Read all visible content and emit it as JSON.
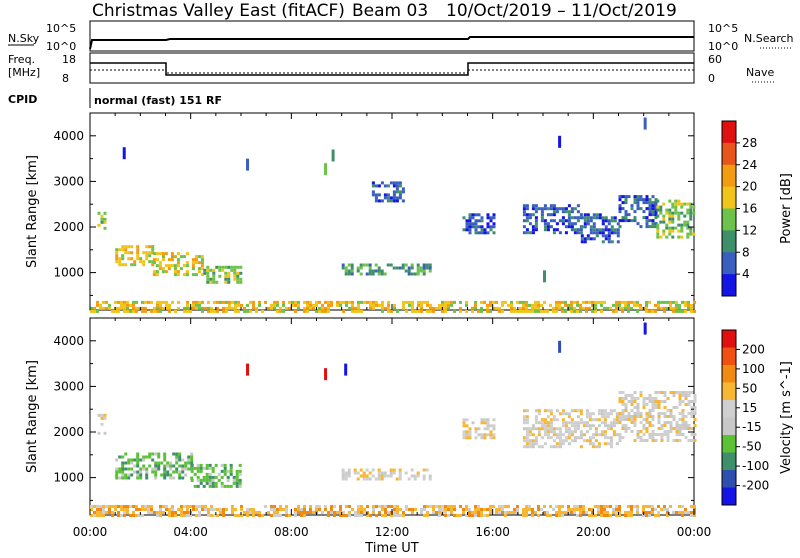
{
  "header": {
    "station": "Christmas Valley East (fitACF)",
    "beam": "Beam 03",
    "date_range": "10/Oct/2019 – 11/Oct/2019"
  },
  "top_panels": {
    "nsky_label": "N.Sky",
    "nsearch_label": "N.Search",
    "nsky_ticks": [
      "10^5",
      "10^0"
    ],
    "nsearch_ticks": [
      "10^5",
      "10^0"
    ],
    "freq_label_1": "Freq.",
    "freq_label_2": "[MHz]",
    "freq_ticks": [
      "18",
      "8"
    ],
    "nave_label": "Nave",
    "nave_ticks": [
      "60",
      "0"
    ],
    "cpid_label": "CPID",
    "cpid_text": "normal (fast) 151 RF"
  },
  "colors": {
    "power_scale": [
      "#1414e6",
      "#3a5fc0",
      "#3f8f6a",
      "#6cc24a",
      "#f0c419",
      "#f39c12",
      "#e8551a",
      "#e01010"
    ],
    "velocity_scale": [
      "#e01010",
      "#f05010",
      "#f08a10",
      "#f7b733",
      "#cfcfcf",
      "#c8c8c8",
      "#5bc236",
      "#3f8f6a",
      "#2f4fb0",
      "#1414e6"
    ],
    "ground": "#000000"
  },
  "chart_data": [
    {
      "type": "heatmap",
      "name": "power",
      "ylabel": "Slant Range [km]",
      "xlabel": "",
      "ylim": [
        180,
        4500
      ],
      "xlim": [
        0,
        24
      ],
      "x_ticks": [
        "00:00",
        "04:00",
        "08:00",
        "12:00",
        "16:00",
        "20:00",
        "00:00"
      ],
      "y_ticks": [
        1000,
        2000,
        3000,
        4000
      ],
      "colorbar": {
        "label": "Power [dB]",
        "min": 0,
        "max": 32,
        "ticks": [
          "4",
          "8",
          "12",
          "16",
          "20",
          "24",
          "28"
        ]
      },
      "regions": [
        {
          "t0": 0.3,
          "t1": 0.55,
          "r0": 1950,
          "r1": 2400,
          "level": 3
        },
        {
          "t0": 1.0,
          "t1": 2.5,
          "r0": 1150,
          "r1": 1600,
          "level": 4
        },
        {
          "t0": 2.5,
          "t1": 4.5,
          "r0": 950,
          "r1": 1450,
          "level": 4
        },
        {
          "t0": 4.5,
          "t1": 6.0,
          "r0": 800,
          "r1": 1150,
          "level": 3
        },
        {
          "t0": 10.0,
          "t1": 13.5,
          "r0": 980,
          "r1": 1200,
          "level": 2
        },
        {
          "t0": 14.8,
          "t1": 16.0,
          "r0": 1900,
          "r1": 2300,
          "level": 1
        },
        {
          "t0": 17.2,
          "t1": 19.5,
          "r0": 1900,
          "r1": 2500,
          "level": 1
        },
        {
          "t0": 19.5,
          "t1": 21.0,
          "r0": 1700,
          "r1": 2300,
          "level": 1
        },
        {
          "t0": 21.0,
          "t1": 22.5,
          "r0": 2000,
          "r1": 2700,
          "level": 1
        },
        {
          "t0": 22.5,
          "t1": 24.0,
          "r0": 1800,
          "r1": 2600,
          "level": 3
        },
        {
          "t0": 11.2,
          "t1": 12.5,
          "r0": 2600,
          "r1": 3000,
          "level": 1
        },
        {
          "t0": 0.0,
          "t1": 24.0,
          "r0": 180,
          "r1": 380,
          "level": 4
        }
      ],
      "markers": [
        {
          "t": 9.3,
          "r": 3400,
          "level": 3
        },
        {
          "t": 9.6,
          "r": 3700,
          "level": 2
        },
        {
          "t": 6.2,
          "r": 3500,
          "level": 1
        },
        {
          "t": 1.3,
          "r": 3750,
          "level": 0
        },
        {
          "t": 18.6,
          "r": 4000,
          "level": 0
        },
        {
          "t": 22.0,
          "r": 4400,
          "level": 1
        },
        {
          "t": 18.0,
          "r": 1050,
          "level": 2
        }
      ]
    },
    {
      "type": "heatmap",
      "name": "velocity",
      "ylabel": "Slant Range [km]",
      "xlabel": "Time UT",
      "ylim": [
        180,
        4500
      ],
      "xlim": [
        0,
        24
      ],
      "x_ticks": [
        "00:00",
        "04:00",
        "08:00",
        "12:00",
        "16:00",
        "20:00",
        "00:00"
      ],
      "y_ticks": [
        1000,
        2000,
        3000,
        4000
      ],
      "colorbar": {
        "label": "Velocity [m s^-1]",
        "ticks": [
          "200",
          "100",
          "50",
          "15",
          "-15",
          "-50",
          "-100",
          "-200"
        ]
      },
      "regions": [
        {
          "t0": 0.3,
          "t1": 0.6,
          "r0": 1950,
          "r1": 2400,
          "level": 4
        },
        {
          "t0": 1.0,
          "t1": 4.0,
          "r0": 1000,
          "r1": 1550,
          "level": 6
        },
        {
          "t0": 4.0,
          "t1": 6.0,
          "r0": 800,
          "r1": 1300,
          "level": 6
        },
        {
          "t0": 10.0,
          "t1": 13.5,
          "r0": 980,
          "r1": 1200,
          "level": 4
        },
        {
          "t0": 14.8,
          "t1": 16.0,
          "r0": 1900,
          "r1": 2300,
          "level": 4
        },
        {
          "t0": 17.2,
          "t1": 21.0,
          "r0": 1700,
          "r1": 2500,
          "level": 4
        },
        {
          "t0": 21.0,
          "t1": 24.0,
          "r0": 1800,
          "r1": 2900,
          "level": 4
        },
        {
          "t0": 0.0,
          "t1": 24.0,
          "r0": 180,
          "r1": 400,
          "level": 3
        }
      ],
      "markers": [
        {
          "t": 9.3,
          "r": 3400,
          "level": 0
        },
        {
          "t": 10.1,
          "r": 3500,
          "level": 9
        },
        {
          "t": 6.2,
          "r": 3500,
          "level": 0
        },
        {
          "t": 22.0,
          "r": 4400,
          "level": 9
        },
        {
          "t": 18.6,
          "r": 4000,
          "level": 8
        }
      ]
    }
  ]
}
